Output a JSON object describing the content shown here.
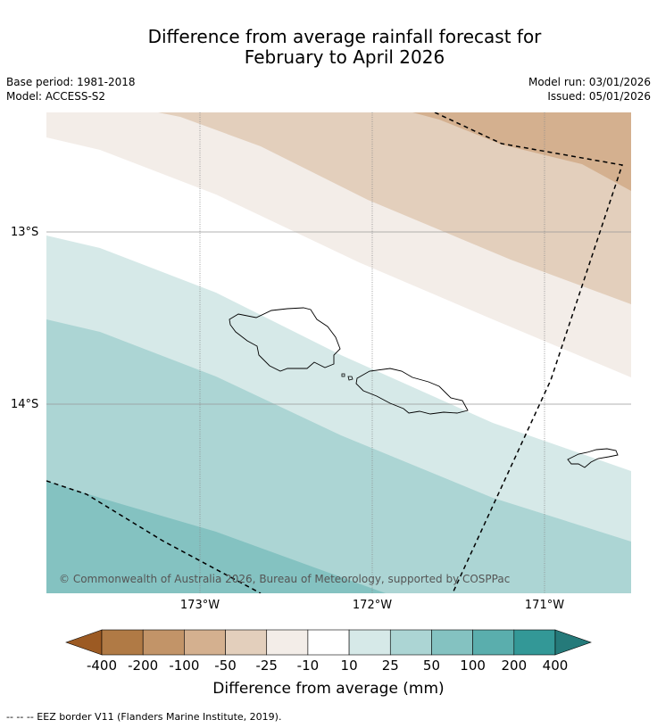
{
  "title_line1": "Difference from average rainfall forecast for",
  "title_line2": "February to April 2026",
  "base_period": "Base period: 1981-2018",
  "model": "Model: ACCESS-S2",
  "model_run": "Model run: 03/01/2026",
  "issued": "Issued: 05/01/2026",
  "latitude_labels": [
    "13°S",
    "14°S"
  ],
  "longitude_labels": [
    "173°W",
    "172°W",
    "171°W"
  ],
  "copyright": "© Commonwealth of Australia 2026, Bureau of Meteorology, supported by COSPPac",
  "colorbar": {
    "label": "Difference from average (mm)",
    "ticks": [
      "-400",
      "-200",
      "-100",
      "-50",
      "-25",
      "-10",
      "10",
      "25",
      "50",
      "100",
      "200",
      "400"
    ],
    "colors": [
      "#9c5a23",
      "#b07a45",
      "#c29468",
      "#d4b08f",
      "#e3cfbc",
      "#f3ede8",
      "#ffffff",
      "#d6e9e8",
      "#acd5d4",
      "#84c2c1",
      "#5aaead",
      "#339897",
      "#257a7a"
    ]
  },
  "footnote": "--  --  -- EEZ border V11 (Flanders Marine Institute, 2019)."
}
